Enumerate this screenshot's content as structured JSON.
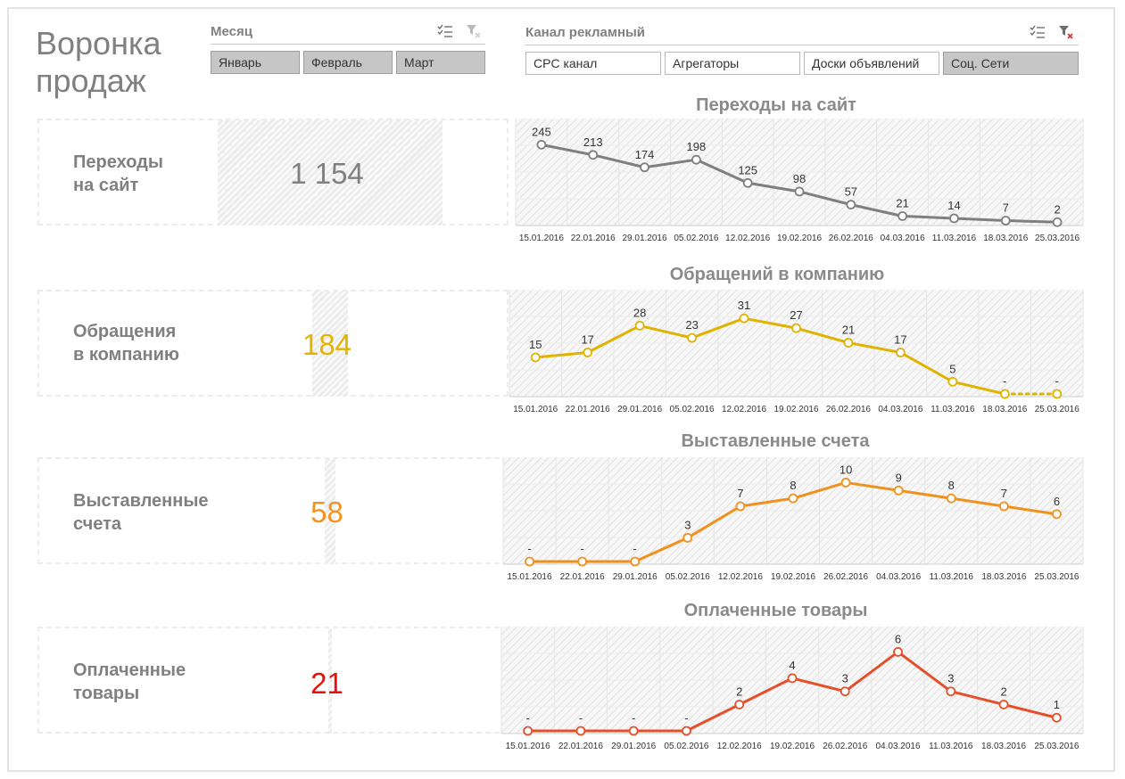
{
  "title": "Воронка\nпродаж",
  "month_slicer": {
    "header": "Месяц",
    "items": [
      {
        "label": "Январь",
        "selected": true
      },
      {
        "label": "Февраль",
        "selected": true
      },
      {
        "label": "Март",
        "selected": true
      }
    ]
  },
  "channel_slicer": {
    "header": "Канал рекламный",
    "items": [
      {
        "label": "CPC канал",
        "selected": false
      },
      {
        "label": "Агрегаторы",
        "selected": false
      },
      {
        "label": "Доски объявлений",
        "selected": false
      },
      {
        "label": "Соц. Сети",
        "selected": true
      }
    ]
  },
  "funnel": [
    {
      "label": "Переходы\nна сайт",
      "value": "1 154",
      "share": 1.0,
      "color": "#808080"
    },
    {
      "label": "Обращения\nв компанию",
      "value": "184",
      "share": 0.16,
      "color": "#e3b400"
    },
    {
      "label": "Выставленные\nсчета",
      "value": "58",
      "share": 0.05,
      "color": "#f39322"
    },
    {
      "label": "Оплаченные\nтовары",
      "value": "21",
      "share": 0.018,
      "color": "#e5120c"
    }
  ],
  "chart_data": [
    {
      "type": "line",
      "title": "Переходы на сайт",
      "x": [
        "15.01.2016",
        "22.01.2016",
        "29.01.2016",
        "05.02.2016",
        "12.02.2016",
        "19.02.2016",
        "26.02.2016",
        "04.03.2016",
        "11.03.2016",
        "18.03.2016",
        "25.03.2016"
      ],
      "series": [
        {
          "values": [
            245,
            213,
            174,
            198,
            125,
            98,
            57,
            21,
            14,
            7,
            2
          ],
          "labels": [
            "245",
            "213",
            "174",
            "198",
            "125",
            "98",
            "57",
            "21",
            "14",
            "7",
            "2"
          ],
          "color": "#7f7f7f"
        }
      ],
      "ylim": [
        0,
        260
      ]
    },
    {
      "type": "line",
      "title": "Обращений в компанию",
      "x": [
        "15.01.2016",
        "22.01.2016",
        "29.01.2016",
        "05.02.2016",
        "12.02.2016",
        "19.02.2016",
        "26.02.2016",
        "04.03.2016",
        "11.03.2016",
        "18.03.2016",
        "25.03.2016"
      ],
      "series": [
        {
          "values": [
            15,
            17,
            28,
            23,
            31,
            27,
            21,
            17,
            5,
            0,
            0
          ],
          "labels": [
            "15",
            "17",
            "28",
            "23",
            "31",
            "27",
            "21",
            "17",
            "5",
            "-",
            "-"
          ],
          "color": "#dfb300"
        }
      ],
      "ylim": [
        0,
        34
      ]
    },
    {
      "type": "line",
      "title": "Выставленные счета",
      "x": [
        "15.01.2016",
        "22.01.2016",
        "29.01.2016",
        "05.02.2016",
        "12.02.2016",
        "19.02.2016",
        "26.02.2016",
        "04.03.2016",
        "11.03.2016",
        "18.03.2016",
        "25.03.2016"
      ],
      "series": [
        {
          "values": [
            0,
            0,
            0,
            3,
            7,
            8,
            10,
            9,
            8,
            7,
            6
          ],
          "labels": [
            "-",
            "-",
            "-",
            "3",
            "7",
            "8",
            "10",
            "9",
            "8",
            "7",
            "6"
          ],
          "color": "#f0911e"
        }
      ],
      "ylim": [
        0,
        10.5
      ]
    },
    {
      "type": "line",
      "title": "Оплаченные товары",
      "x": [
        "15.01.2016",
        "22.01.2016",
        "29.01.2016",
        "05.02.2016",
        "12.02.2016",
        "19.02.2016",
        "26.02.2016",
        "04.03.2016",
        "11.03.2016",
        "18.03.2016",
        "25.03.2016"
      ],
      "series": [
        {
          "values": [
            0,
            0,
            0,
            0,
            2,
            4,
            3,
            6,
            3,
            2,
            1
          ],
          "labels": [
            "-",
            "-",
            "-",
            "-",
            "2",
            "4",
            "3",
            "6",
            "3",
            "2",
            "1"
          ],
          "color": "#e3502a"
        }
      ],
      "ylim": [
        0,
        6.3
      ]
    }
  ]
}
